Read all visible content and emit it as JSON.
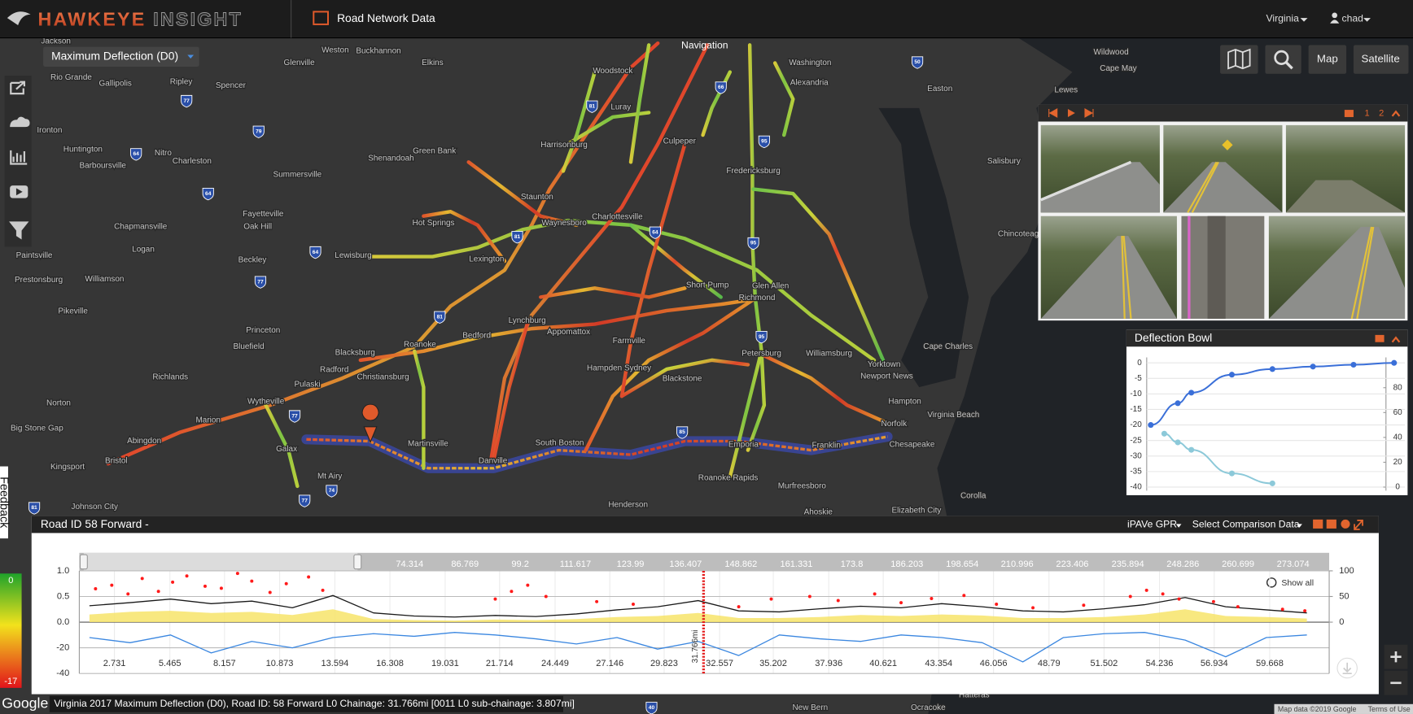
{
  "header": {
    "logo_left": "HAWKEYE",
    "logo_right": "INSIGHT",
    "section": "Road Network Data",
    "region": "Virginia",
    "user": "chad"
  },
  "map": {
    "layer": "Maximum Deflection (D0)",
    "navigation": "Navigation",
    "buttons": [
      "Map",
      "Satellite"
    ],
    "labels": [
      "Jackson",
      "Rio Grande",
      "Gallipolis",
      "Ripley",
      "Spencer",
      "Glenville",
      "Weston",
      "Buckhannon",
      "Elkins",
      "Woodstock",
      "Luray",
      "Harrisonburg",
      "Washington",
      "Alexandria",
      "Ironton",
      "Huntington",
      "Nitro",
      "Charleston",
      "Barboursville",
      "Summersville",
      "Shenandoah",
      "Green Bank",
      "Culpeper",
      "Fredericksburg",
      "Staunton",
      "Charlottesville",
      "Waynesboro",
      "Fayetteville",
      "Oak Hill",
      "Chapmansville",
      "Logan",
      "Hot Springs",
      "Paintsville",
      "Beckley",
      "Lewisburg",
      "Lexington",
      "Prestonsburg",
      "Williamson",
      "Short Pump",
      "Richmond",
      "Glen Allen",
      "Pikeville",
      "Lynchburg",
      "Princeton",
      "Appomattox",
      "Bedford",
      "Farmville",
      "Bluefield",
      "Roanoke",
      "Blacksburg",
      "Petersburg",
      "Williamsburg",
      "Cape Charles",
      "Hampden Sydney",
      "Radford",
      "Yorktown",
      "Newport News",
      "Richlands",
      "Christiansburg",
      "Blackstone",
      "Pulaski",
      "Hampton",
      "Wytheville",
      "Norton",
      "Virginia Beach",
      "Marion",
      "Norfolk",
      "Big Stone Gap",
      "Abingdon",
      "Martinsville",
      "South Boston",
      "Emporia",
      "Franklin",
      "Chesapeake",
      "Galax",
      "Bristol",
      "Kingsport",
      "Danville",
      "Mt Airy",
      "Roanoke Rapids",
      "Murfreesboro",
      "Corolla",
      "Henderson",
      "Johnson City",
      "Elizabeth City",
      "Ahoskie",
      "Salisbury",
      "Easton",
      "Lewes",
      "Wildwood",
      "Cape May",
      "Chincoteague",
      "New Bern",
      "Ocracoke",
      "Hatteras"
    ],
    "shields": [
      "77",
      "79",
      "64",
      "64",
      "64",
      "77",
      "77",
      "74",
      "77",
      "81",
      "81",
      "81",
      "64",
      "95",
      "85",
      "66",
      "81",
      "95",
      "95",
      "50",
      "40"
    ],
    "colorbar": {
      "values": [
        0,
        -17
      ]
    },
    "feedback": "Feedback",
    "google": "Google",
    "status": "Virginia 2017 Maximum Deflection (D0), Road ID: 58 Forward L0 Chainage: 31.766mi [0011 L0 sub-chainage: 3.807mi]",
    "attribution": "Map data ©2019 Google",
    "terms": "Terms of Use"
  },
  "video": {
    "pages": [
      1,
      2
    ]
  },
  "chart_data": [
    {
      "type": "line",
      "title": "Deflection Bowl",
      "xlim": [
        -30,
        1880
      ],
      "ylim": [
        -40,
        0
      ],
      "yticks": [
        0,
        -5,
        -10,
        -15,
        -20,
        -25,
        -30,
        -35,
        -40
      ],
      "y2lim": [
        0,
        100
      ],
      "y2ticks": [
        0,
        20,
        40,
        60,
        80
      ],
      "grid": true,
      "series": [
        {
          "color": "#3a6fd8",
          "x": [
            0,
            200,
            300,
            600,
            900,
            1200,
            1500,
            1800
          ],
          "values": [
            -20,
            -13,
            -9.6,
            -3.8,
            -2,
            -1.2,
            -0.6,
            0
          ]
        },
        {
          "color": "#8cc9d9",
          "axis": "y2",
          "x": [
            100,
            200,
            300,
            600,
            900
          ],
          "values": [
            43,
            36,
            30,
            11,
            3
          ]
        }
      ]
    },
    {
      "type": "line",
      "title": "Road ID 58 Forward -",
      "source": "iPAVe GPR",
      "comparison": "Select Comparison Data",
      "show_all": "Show all",
      "x": [
        1.5,
        3.5,
        5.5,
        7.5,
        9.5,
        11.5,
        13.5,
        15.5,
        17.5,
        19.5,
        21.5,
        23.5,
        25.5,
        27.5,
        29.5,
        31.5,
        33.5,
        35.5,
        37.5,
        39.5,
        41.5,
        43.5,
        45.5,
        47.5,
        49.5,
        51.5,
        53.5,
        55.5,
        57.5,
        59.5,
        61.5
      ],
      "xlim": [
        1.0,
        62.6
      ],
      "xticks": [
        2.731,
        5.465,
        8.157,
        10.873,
        13.594,
        16.308,
        19.031,
        21.714,
        24.449,
        27.146,
        29.823,
        32.557,
        35.202,
        37.936,
        40.621,
        43.354,
        46.056,
        48.79,
        51.502,
        54.236,
        56.934,
        59.668
      ],
      "ylim": [
        0,
        1
      ],
      "yticks": [
        {
          "value": 0,
          "label": "0.0"
        },
        {
          "value": 0.5,
          "label": "0.5"
        },
        {
          "value": 1,
          "label": "1.0"
        }
      ],
      "y2lim": [
        0,
        100
      ],
      "y2ticks": [
        0,
        50,
        100
      ],
      "lower_ylim": [
        -40,
        0
      ],
      "lower_yticks": [
        -40,
        -20
      ],
      "grid": true,
      "series": [
        {
          "color": "#f7e46a",
          "fill": true,
          "values": [
            0.15,
            0.2,
            0.22,
            0.18,
            0.2,
            0.14,
            0.25,
            0.06,
            0.04,
            0.03,
            0.05,
            0.04,
            0.06,
            0.1,
            0.12,
            0.18,
            0.08,
            0.08,
            0.1,
            0.14,
            0.12,
            0.15,
            0.13,
            0.08,
            0.08,
            0.1,
            0.15,
            0.25,
            0.12,
            0.1,
            0.07
          ]
        },
        {
          "color": "#1a1a1a",
          "values": [
            0.32,
            0.38,
            0.45,
            0.36,
            0.41,
            0.28,
            0.52,
            0.18,
            0.12,
            0.1,
            0.13,
            0.11,
            0.16,
            0.24,
            0.3,
            0.42,
            0.22,
            0.2,
            0.26,
            0.31,
            0.28,
            0.36,
            0.3,
            0.22,
            0.2,
            0.26,
            0.34,
            0.48,
            0.3,
            0.24,
            0.18
          ]
        },
        {
          "color": "#3b87e0",
          "panel": "lower",
          "values": [
            -12,
            -16,
            -10,
            -24,
            -15,
            -20,
            -12,
            -9,
            -11,
            -8,
            -10,
            -13,
            -17,
            -12,
            -21,
            -15,
            -26,
            -10,
            -13,
            -15,
            -10,
            -12,
            -16,
            -31,
            -12,
            -9,
            -8,
            -14,
            -27,
            -12,
            -10
          ]
        }
      ],
      "points": {
        "color": "#ff1a1a",
        "x": [
          1.8,
          2.6,
          3.4,
          4.1,
          4.9,
          5.6,
          6.3,
          7.2,
          8.0,
          8.8,
          9.5,
          10.4,
          11.2,
          12.3,
          13.0,
          21.5,
          22.3,
          23.1,
          24.0,
          26.5,
          28.3,
          33.5,
          35.1,
          37.0,
          38.4,
          40.2,
          41.5,
          43.0,
          44.6,
          46.2,
          48.0,
          50.5,
          52.8,
          53.6,
          54.4,
          55.2,
          56.9,
          58.1,
          60.3,
          61.4
        ],
        "values": [
          0.65,
          0.72,
          0.55,
          0.85,
          0.6,
          0.78,
          0.9,
          0.7,
          0.66,
          0.95,
          0.8,
          0.58,
          0.75,
          0.88,
          0.62,
          0.45,
          0.6,
          0.72,
          0.5,
          0.4,
          0.35,
          0.3,
          0.45,
          0.5,
          0.42,
          0.55,
          0.38,
          0.46,
          0.52,
          0.35,
          0.28,
          0.33,
          0.5,
          0.62,
          0.55,
          0.45,
          0.4,
          0.3,
          0.25,
          0.22
        ]
      },
      "marker": {
        "x": 31.766,
        "label": "31.766mi",
        "color": "#e41b1b"
      },
      "navigator": {
        "xlim": [
          0,
          281.2
        ],
        "xticks": [
          74.314,
          86.769,
          99.2,
          111.617,
          123.99,
          136.407,
          148.862,
          161.331,
          173.8,
          186.203,
          198.654,
          210.996,
          223.406,
          235.894,
          248.286,
          260.699,
          273.074
        ]
      }
    }
  ]
}
